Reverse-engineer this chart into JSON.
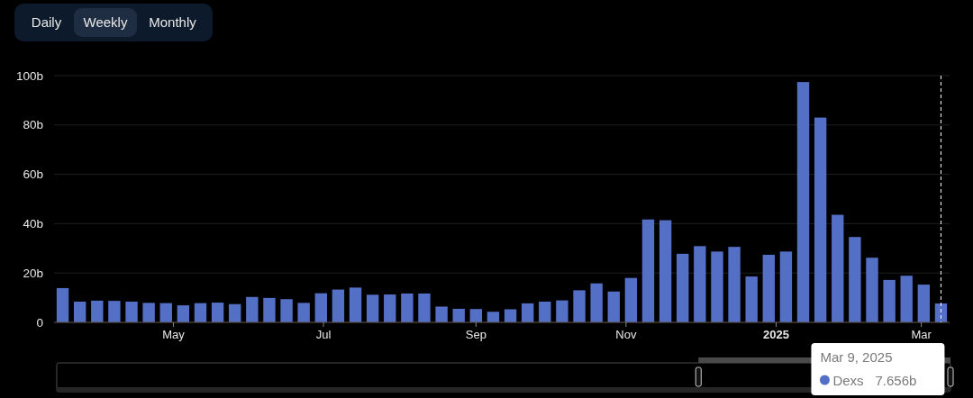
{
  "chart_data": {
    "type": "bar",
    "annotations": [
      "Daily",
      "Weekly",
      "Monthly",
      "Mar 9, 2025",
      "7.656b"
    ],
    "x": [
      "2024-03-17",
      "2024-03-24",
      "2024-03-31",
      "2024-04-07",
      "2024-04-14",
      "2024-04-21",
      "2024-04-28",
      "2024-05-05",
      "2024-05-12",
      "2024-05-19",
      "2024-05-26",
      "2024-06-02",
      "2024-06-09",
      "2024-06-16",
      "2024-06-23",
      "2024-06-30",
      "2024-07-07",
      "2024-07-14",
      "2024-07-21",
      "2024-07-28",
      "2024-08-04",
      "2024-08-11",
      "2024-08-18",
      "2024-08-25",
      "2024-09-01",
      "2024-09-08",
      "2024-09-15",
      "2024-09-22",
      "2024-09-29",
      "2024-10-06",
      "2024-10-13",
      "2024-10-20",
      "2024-10-27",
      "2024-11-03",
      "2024-11-10",
      "2024-11-17",
      "2024-11-24",
      "2024-12-01",
      "2024-12-08",
      "2024-12-15",
      "2024-12-22",
      "2024-12-29",
      "2025-01-05",
      "2025-01-12",
      "2025-01-19",
      "2025-01-26",
      "2025-02-02",
      "2025-02-09",
      "2025-02-16",
      "2025-02-23",
      "2025-03-02",
      "2025-03-09"
    ],
    "series": [
      {
        "name": "Dexs",
        "color": "#5470c6",
        "values": [
          13.9,
          8.4,
          8.8,
          8.7,
          8.4,
          7.9,
          7.8,
          6.9,
          7.8,
          8.0,
          7.4,
          10.3,
          9.9,
          9.4,
          7.9,
          11.8,
          13.3,
          14.1,
          11.2,
          11.3,
          11.7,
          11.7,
          6.4,
          5.5,
          5.4,
          4.3,
          5.3,
          7.7,
          8.4,
          8.9,
          13.0,
          15.8,
          12.5,
          18.0,
          41.7,
          41.4,
          27.8,
          30.9,
          28.7,
          30.6,
          18.6,
          27.4,
          28.7,
          97.4,
          83.0,
          43.6,
          34.6,
          26.2,
          17.2,
          18.9,
          15.3,
          7.656
        ]
      }
    ],
    "xlim": [
      "2024-03-13T12:00",
      "2025-03-12T12:00"
    ],
    "xticks": [
      {
        "value": "2024-05-01",
        "label": "May"
      },
      {
        "value": "2024-07-01",
        "label": "Jul"
      },
      {
        "value": "2024-09-01",
        "label": "Sep"
      },
      {
        "value": "2024-11-01",
        "label": "Nov"
      },
      {
        "value": "2025-01-01",
        "label": "2025"
      },
      {
        "value": "2025-03-01",
        "label": "Mar"
      }
    ],
    "ylim": [
      0,
      100
    ],
    "yticks": [
      0,
      {
        "value": 20,
        "label": "20b"
      },
      {
        "value": 40,
        "label": "40b"
      },
      {
        "value": 60,
        "label": "60b"
      },
      {
        "value": 80,
        "label": "80b"
      },
      {
        "value": 100,
        "label": "100b"
      }
    ],
    "grid": "y",
    "legend": "bottom right",
    "ref_lines": [
      {
        "axis": "x",
        "value": "2025-03-09",
        "line_style": "dashed",
        "color": "#ffffff"
      }
    ]
  }
}
